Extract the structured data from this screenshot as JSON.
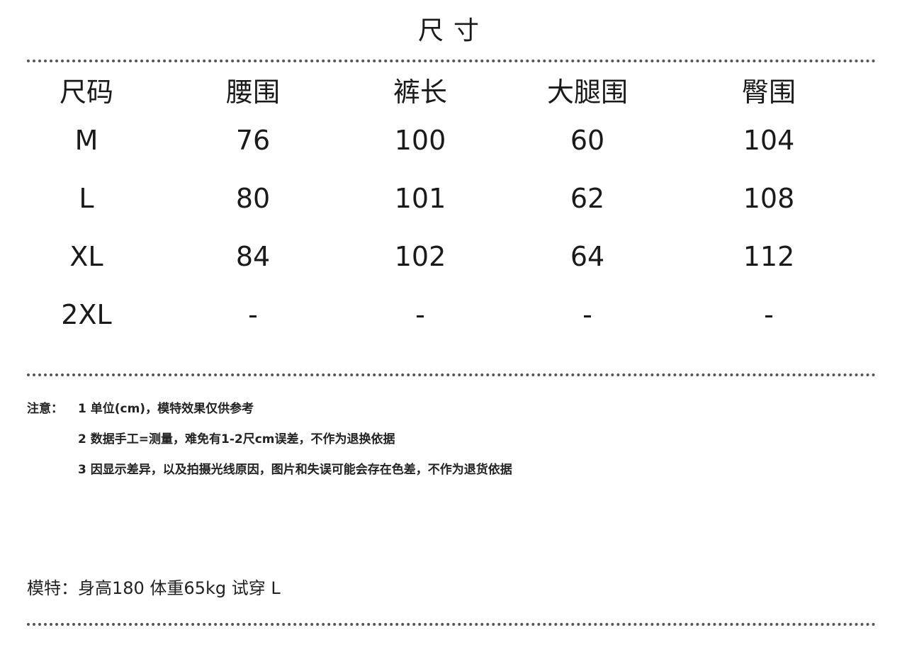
{
  "title": "尺寸",
  "table": {
    "headers": [
      "尺码",
      "腰围",
      "裤长",
      "大腿围",
      "臀围"
    ],
    "rows": [
      [
        "M",
        "76",
        "100",
        "60",
        "104"
      ],
      [
        "L",
        "80",
        "101",
        "62",
        "108"
      ],
      [
        "XL",
        "84",
        "102",
        "64",
        "112"
      ],
      [
        "2XL",
        "-",
        "-",
        "-",
        "-"
      ]
    ]
  },
  "notes": {
    "label": "注意：",
    "items": [
      "1 单位(cm)，模特效果仅供参考",
      "2 数据手工=测量，难免有1-2尺cm误差，不作为退换依据",
      "3 因显示差异，以及拍摄光线原因，图片和失误可能会存在色差，不作为退货依据"
    ]
  },
  "model_info": "模特：身高180 体重65kg 试穿 L"
}
